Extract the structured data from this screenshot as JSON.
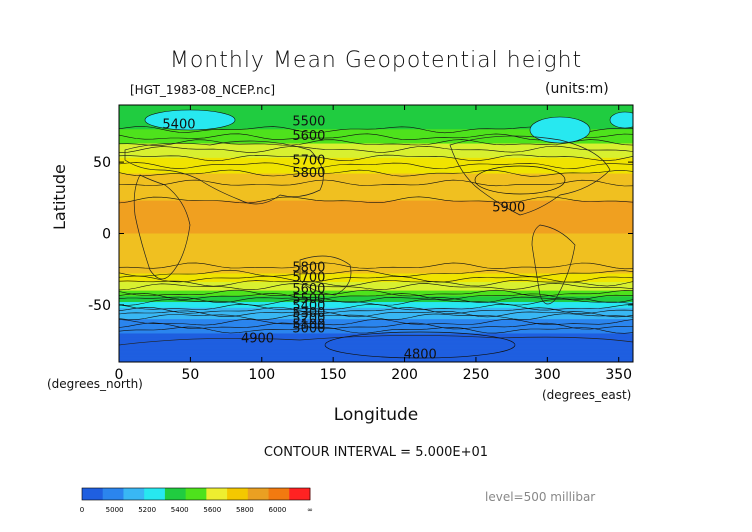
{
  "chart_data": {
    "type": "heatmap",
    "title": "Monthly Mean Geopotential height",
    "file_label": "[HGT_1983-08_NCEP.nc]",
    "units_label": "(units:m)",
    "xlabel": "Longitude",
    "ylabel": "Latitude",
    "x_unit_label": "(degrees_east)",
    "y_unit_label": "(degrees_north)",
    "xlim": [
      0,
      360
    ],
    "ylim": [
      -90,
      90
    ],
    "xticks": [
      "0",
      "50",
      "100",
      "150",
      "200",
      "250",
      "300",
      "350"
    ],
    "yticks": [
      "50",
      "0",
      "-50"
    ],
    "contour_interval_label": "CONTOUR INTERVAL = 5.000E+01",
    "level_label": "level=500 millibar",
    "colorbar": {
      "tick_labels": [
        "0",
        "5000",
        "5200",
        "5400",
        "5600",
        "5800",
        "6000",
        "∞"
      ],
      "colors": [
        "#1f5fe0",
        "#2b85ee",
        "#39b7f4",
        "#27e8f0",
        "#20cc40",
        "#4ee21c",
        "#eeee30",
        "#f4c800",
        "#eaa022",
        "#f27a10",
        "#ff2222"
      ]
    },
    "band_colors": {
      "below_4900": "#1f5fe0",
      "4900_5000": "#2b85ee",
      "5000_5100": "#2b85ee",
      "5100_5300": "#39b7f4",
      "5300_5400": "#27e8f0",
      "5400_5500": "#20cc40",
      "5500_5600": "#4ee21c",
      "5600_5700": "#d8f030",
      "5700_5800": "#f0e400",
      "5800_5900": "#f0c020",
      "above_5900": "#f0a020"
    },
    "zonal_profile": [
      {
        "lat": 90,
        "z": 5420
      },
      {
        "lat": 80,
        "z": 5450
      },
      {
        "lat": 70,
        "z": 5520
      },
      {
        "lat": 60,
        "z": 5640
      },
      {
        "lat": 50,
        "z": 5730
      },
      {
        "lat": 40,
        "z": 5820
      },
      {
        "lat": 30,
        "z": 5880
      },
      {
        "lat": 20,
        "z": 5910
      },
      {
        "lat": 0,
        "z": 5900
      },
      {
        "lat": -20,
        "z": 5880
      },
      {
        "lat": -30,
        "z": 5780
      },
      {
        "lat": -40,
        "z": 5600
      },
      {
        "lat": -50,
        "z": 5350
      },
      {
        "lat": -60,
        "z": 5100
      },
      {
        "lat": -70,
        "z": 4900
      },
      {
        "lat": -80,
        "z": 4850
      },
      {
        "lat": -90,
        "z": 4800
      }
    ],
    "contour_labels": [
      {
        "text": "5400",
        "lon": 42,
        "lat": 77
      },
      {
        "text": "5500",
        "lon": 133,
        "lat": 79
      },
      {
        "text": "5600",
        "lon": 133,
        "lat": 69
      },
      {
        "text": "5700",
        "lon": 133,
        "lat": 52
      },
      {
        "text": "5800",
        "lon": 133,
        "lat": 43
      },
      {
        "text": "5900",
        "lon": 273,
        "lat": 19
      },
      {
        "text": "5800",
        "lon": 133,
        "lat": -23
      },
      {
        "text": "5700",
        "lon": 133,
        "lat": -30
      },
      {
        "text": "5600",
        "lon": 133,
        "lat": -38
      },
      {
        "text": "5500",
        "lon": 133,
        "lat": -45
      },
      {
        "text": "5400",
        "lon": 133,
        "lat": -50
      },
      {
        "text": "5300",
        "lon": 133,
        "lat": -55
      },
      {
        "text": "5200",
        "lon": 133,
        "lat": -59
      },
      {
        "text": "5100",
        "lon": 133,
        "lat": -63
      },
      {
        "text": "5000",
        "lon": 133,
        "lat": -66
      },
      {
        "text": "4900",
        "lon": 97,
        "lat": -73
      },
      {
        "text": "4800",
        "lon": 211,
        "lat": -84
      }
    ]
  }
}
